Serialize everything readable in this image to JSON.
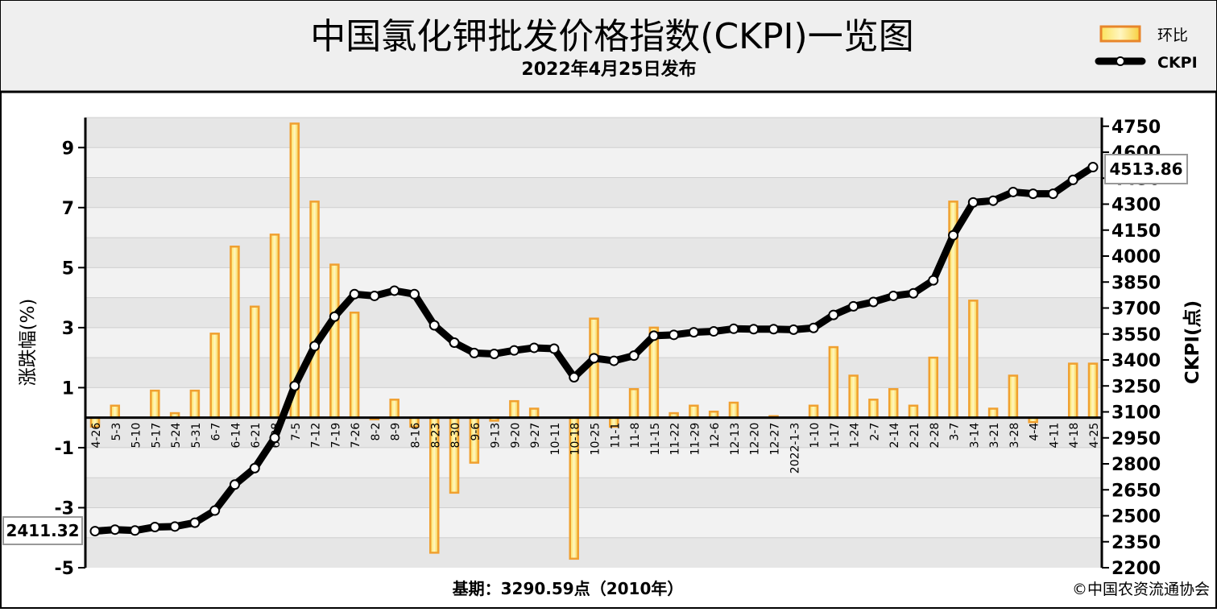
{
  "chart_data": {
    "type": "bar+line",
    "title": "中国氯化钾批发价格指数(CKPI)一览图",
    "subtitle": "2022年4月25日发布",
    "ylabel_left": "涨跌幅(%)",
    "ylabel_right": "CKPI(点)",
    "left_ticks": [
      "9",
      "7",
      "5",
      "3",
      "1",
      "-1",
      "-3",
      "-5"
    ],
    "right_ticks": [
      "4750",
      "4600",
      "4450",
      "4300",
      "4150",
      "4000",
      "3850",
      "3700",
      "3550",
      "3400",
      "3250",
      "3100",
      "2950",
      "2800",
      "2650",
      "2500",
      "2350",
      "2200"
    ],
    "ylim_left": [
      -5,
      10
    ],
    "ylim_right": [
      2200,
      4800
    ],
    "grid": true,
    "legend_position": "top-right",
    "categories": [
      "4-26",
      "5-3",
      "5-10",
      "5-17",
      "5-24",
      "5-31",
      "6-7",
      "6-14",
      "6-21",
      "6-28",
      "7-5",
      "7-12",
      "7-19",
      "7-26",
      "8-2",
      "8-9",
      "8-16",
      "8-23",
      "8-30",
      "9-6",
      "9-13",
      "9-20",
      "9-27",
      "10-11",
      "10-18",
      "10-25",
      "11-1",
      "11-8",
      "11-15",
      "11-22",
      "11-29",
      "12-6",
      "12-13",
      "12-20",
      "12-27",
      "2022-1-3",
      "1-10",
      "1-17",
      "1-24",
      "2-7",
      "2-14",
      "2-21",
      "2-28",
      "3-7",
      "3-14",
      "3-21",
      "3-28",
      "4-4",
      "4-11",
      "4-18",
      "4-25"
    ],
    "series": [
      {
        "name": "环比",
        "type": "bar",
        "color": "#f0a030",
        "values": [
          -0.3,
          0.4,
          0.0,
          0.9,
          0.15,
          0.9,
          2.8,
          5.7,
          3.7,
          6.1,
          9.8,
          7.2,
          5.1,
          3.5,
          -0.05,
          0.6,
          -0.3,
          -4.5,
          -2.5,
          -1.5,
          -0.1,
          0.55,
          0.3,
          0.0,
          -4.7,
          3.3,
          -0.3,
          0.95,
          3.0,
          0.15,
          0.4,
          0.2,
          0.5,
          0.0,
          0.05,
          0.0,
          0.4,
          2.35,
          1.4,
          0.6,
          0.95,
          0.4,
          2.0,
          7.2,
          3.9,
          0.3,
          1.4,
          -0.15,
          0.0,
          1.8,
          1.8
        ]
      },
      {
        "name": "CKPI",
        "type": "line",
        "color": "#000000",
        "values": [
          2411.32,
          2420,
          2415,
          2435,
          2438,
          2460,
          2530,
          2680,
          2775,
          2950,
          3250,
          3480,
          3650,
          3780,
          3770,
          3800,
          3780,
          3600,
          3500,
          3440,
          3435,
          3455,
          3470,
          3465,
          3300,
          3410,
          3395,
          3425,
          3540,
          3545,
          3560,
          3565,
          3580,
          3578,
          3578,
          3575,
          3585,
          3660,
          3710,
          3735,
          3770,
          3785,
          3860,
          4120,
          4310,
          4320,
          4370,
          4360,
          4360,
          4440,
          4513.86
        ]
      }
    ],
    "annotations": {
      "first_value": "2411.32",
      "last_value": "4513.86"
    },
    "footer_base": "基期：3290.59点（2010年）",
    "copyright": "©中国农资流通协会"
  }
}
